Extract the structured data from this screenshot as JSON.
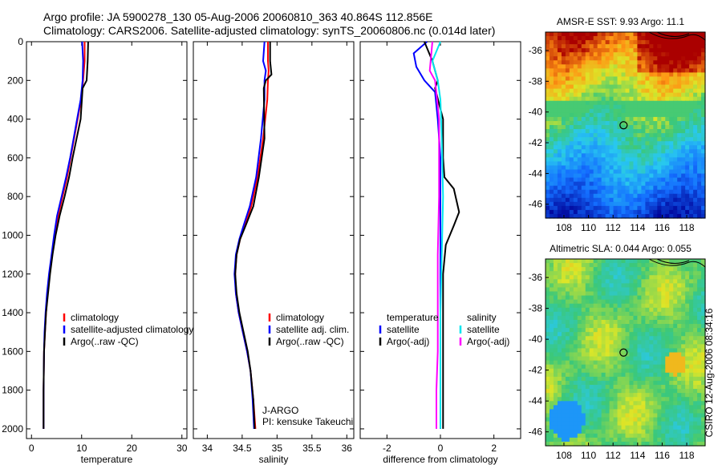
{
  "header": {
    "line1": "Argo profile: JA 5900278_130 05-Aug-2006 20060810_363 40.864S 112.856E",
    "line2": "Climatology: CARS2006. Satellite-adjusted climatology: synTS_20060806.nc (0.014d later)"
  },
  "side_label": "CSIRO 12-Aug-2006 08:34:16",
  "institution": {
    "line1": "J-ARGO",
    "line2": "PI: kensuke Takeuchi"
  },
  "colors": {
    "climatology": "#ff0000",
    "satellite": "#0000ff",
    "argo": "#000000",
    "cyan": "#00e5ee",
    "magenta": "#ff00ff"
  },
  "chart_data": [
    {
      "type": "line",
      "name": "temperature-profile",
      "xlabel": "temperature",
      "ylabel": "",
      "xlim": [
        -1,
        31
      ],
      "ylim": [
        2050,
        0
      ],
      "yreverse": true,
      "xticks": [
        0,
        10,
        20,
        30
      ],
      "yticks": [
        0,
        200,
        400,
        600,
        800,
        1000,
        1200,
        1400,
        1600,
        1800,
        2000
      ],
      "legend": [
        "climatology",
        "satellite-adjusted climatology",
        "Argo(..raw -QC)"
      ],
      "series": [
        {
          "name": "climatology",
          "color": "#ff0000",
          "x": [
            10.6,
            10.6,
            10.3,
            9.9,
            9.2,
            8.5,
            7.8,
            7.1,
            6.2,
            5.3,
            4.7,
            4.1,
            3.6,
            3.2,
            2.9,
            2.7,
            2.5,
            2.4,
            2.4
          ],
          "y": [
            0,
            100,
            200,
            300,
            400,
            500,
            600,
            700,
            800,
            900,
            1000,
            1100,
            1200,
            1300,
            1400,
            1500,
            1600,
            1800,
            2000
          ]
        },
        {
          "name": "satellite-adjusted climatology",
          "color": "#0000ff",
          "x": [
            10.1,
            10.3,
            10.2,
            9.8,
            9.1,
            8.4,
            7.7,
            6.9,
            6.0,
            5.1,
            4.5,
            4.0,
            3.5,
            3.1,
            2.8,
            2.6,
            2.5,
            2.4,
            2.4
          ],
          "y": [
            0,
            100,
            200,
            300,
            400,
            500,
            600,
            700,
            800,
            900,
            1000,
            1100,
            1200,
            1300,
            1400,
            1500,
            1600,
            1800,
            2000
          ]
        },
        {
          "name": "Argo(..raw -QC)",
          "color": "#000000",
          "x": [
            11.3,
            11.2,
            11.0,
            10.2,
            9.8,
            9.0,
            8.2,
            7.5,
            6.6,
            5.6,
            4.8,
            4.2,
            3.7,
            3.3,
            2.9,
            2.7,
            2.5,
            2.4,
            2.4
          ],
          "y": [
            0,
            100,
            200,
            240,
            400,
            500,
            600,
            700,
            800,
            900,
            1000,
            1100,
            1200,
            1300,
            1400,
            1500,
            1600,
            1800,
            2000
          ]
        }
      ]
    },
    {
      "type": "line",
      "name": "salinity-profile",
      "xlabel": "salinity",
      "ylabel": "",
      "xlim": [
        33.8,
        36.1
      ],
      "ylim": [
        2050,
        0
      ],
      "yreverse": true,
      "xticks": [
        34,
        34.5,
        35,
        35.5,
        36
      ],
      "yticks": [],
      "legend": [
        "climatology",
        "satellite adj. clim.",
        "Argo(..raw -QC)"
      ],
      "series": [
        {
          "name": "climatology",
          "color": "#ff0000",
          "x": [
            34.87,
            34.87,
            34.88,
            34.87,
            34.86,
            34.8,
            34.72,
            34.63,
            34.54,
            34.47,
            34.42,
            34.4,
            34.41,
            34.45,
            34.51,
            34.57,
            34.62,
            34.66,
            34.69
          ],
          "y": [
            0,
            100,
            150,
            200,
            300,
            500,
            700,
            850,
            950,
            1020,
            1100,
            1200,
            1300,
            1400,
            1500,
            1600,
            1700,
            1850,
            2000
          ]
        },
        {
          "name": "satellite adj. clim.",
          "color": "#0000ff",
          "x": [
            34.82,
            34.8,
            34.84,
            34.82,
            34.82,
            34.77,
            34.7,
            34.61,
            34.52,
            34.46,
            34.41,
            34.39,
            34.41,
            34.45,
            34.51,
            34.57,
            34.62,
            34.65,
            34.67
          ],
          "y": [
            0,
            100,
            150,
            200,
            300,
            500,
            700,
            850,
            950,
            1020,
            1100,
            1200,
            1300,
            1400,
            1500,
            1600,
            1700,
            1850,
            2000
          ]
        },
        {
          "name": "Argo(..raw -QC)",
          "color": "#000000",
          "x": [
            34.9,
            34.9,
            34.92,
            34.84,
            34.81,
            34.82,
            34.74,
            34.66,
            34.55,
            34.47,
            34.42,
            34.4,
            34.42,
            34.46,
            34.52,
            34.58,
            34.62,
            34.66,
            34.68
          ],
          "y": [
            0,
            100,
            170,
            200,
            240,
            500,
            700,
            850,
            950,
            1020,
            1100,
            1200,
            1300,
            1400,
            1500,
            1600,
            1700,
            1850,
            2000
          ]
        }
      ]
    },
    {
      "type": "line",
      "name": "difference-profile",
      "xlabel": "difference from climatology",
      "ylabel": "",
      "xlim": [
        -3,
        3
      ],
      "ylim": [
        2050,
        0
      ],
      "yreverse": true,
      "xticks": [
        -2,
        0,
        2
      ],
      "yticks": [],
      "legend_left": [
        "temperature",
        "satellite",
        "Argo(-adj)"
      ],
      "legend_right": [
        "salinity",
        "satellite",
        "Argo(-adj)"
      ],
      "series": [
        {
          "name": "temperature satellite",
          "color": "#0000ff",
          "x": [
            -0.5,
            -1.0,
            -0.9,
            -0.6,
            -0.2,
            -0.1,
            0,
            0,
            0,
            0,
            0
          ],
          "y": [
            0,
            60,
            130,
            200,
            260,
            400,
            600,
            900,
            1200,
            1600,
            2000
          ]
        },
        {
          "name": "temperature Argo(-adj)",
          "color": "#000000",
          "x": [
            -0.6,
            -0.3,
            -0.1,
            -0.2,
            0.1,
            0.1,
            0.15,
            0.5,
            0.6,
            0.7,
            0.5,
            0.2,
            0.1,
            0.1,
            0.1
          ],
          "y": [
            0,
            100,
            200,
            240,
            400,
            600,
            700,
            760,
            820,
            880,
            950,
            1050,
            1200,
            1600,
            2000
          ]
        },
        {
          "name": "salinity satellite",
          "color": "#00e5ee",
          "x": [
            0,
            -0.3,
            -0.1,
            0,
            0.05,
            0.1,
            0.05,
            0,
            0,
            0
          ],
          "y": [
            0,
            100,
            200,
            300,
            500,
            800,
            1100,
            1400,
            1700,
            2000
          ]
        },
        {
          "name": "salinity Argo(-adj)",
          "color": "#ff00ff",
          "x": [
            -0.3,
            -0.4,
            -0.2,
            -0.05,
            -0.05,
            -0.1,
            -0.1,
            -0.1,
            -0.15,
            -0.15
          ],
          "y": [
            0,
            150,
            200,
            400,
            800,
            1100,
            1400,
            1600,
            1800,
            2000
          ]
        }
      ]
    },
    {
      "type": "heatmap",
      "name": "sst-map",
      "title": "AMSR-E SST: 9.93 Argo: 11.1",
      "xlim": [
        106.5,
        119.5
      ],
      "ylim": [
        -46.9,
        -34.8
      ],
      "xticks": [
        108,
        110,
        112,
        114,
        116,
        118
      ],
      "yticks": [
        -36,
        -38,
        -40,
        -42,
        -44,
        -46
      ],
      "marker": {
        "lon": 112.856,
        "lat": -40.864
      }
    },
    {
      "type": "heatmap",
      "name": "sla-map",
      "title": "Altimetric SLA: 0.044 Argo: 0.055",
      "xlim": [
        106.5,
        119.5
      ],
      "ylim": [
        -46.9,
        -34.8
      ],
      "xticks": [
        108,
        110,
        112,
        114,
        116,
        118
      ],
      "yticks": [
        -36,
        -38,
        -40,
        -42,
        -44,
        -46
      ],
      "marker": {
        "lon": 112.856,
        "lat": -40.864
      }
    }
  ]
}
